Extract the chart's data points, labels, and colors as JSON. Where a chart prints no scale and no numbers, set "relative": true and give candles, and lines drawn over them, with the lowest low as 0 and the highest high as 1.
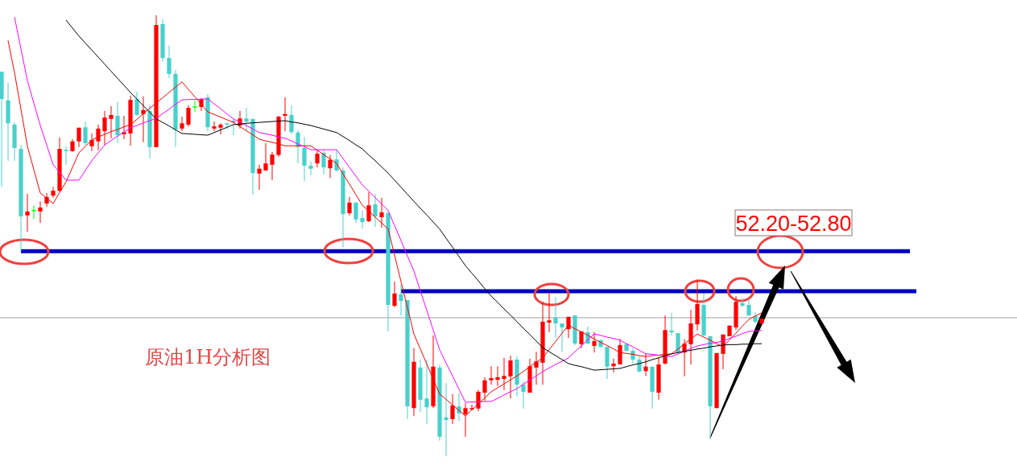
{
  "chart_data": {
    "type": "candlestick",
    "relative": true,
    "categories": [
      null,
      null,
      null,
      null,
      null,
      null,
      null,
      null,
      null,
      null,
      null,
      null,
      null,
      null,
      null,
      null,
      null,
      null,
      null,
      null,
      null,
      null,
      null,
      null,
      null,
      null,
      null,
      null,
      null,
      null,
      null,
      null,
      null,
      null,
      null,
      null,
      null,
      null,
      null,
      null,
      null,
      null,
      null,
      null,
      null,
      null,
      null,
      null,
      null,
      null,
      null,
      null,
      null,
      null,
      null,
      null,
      null,
      null,
      null,
      null,
      null,
      null,
      null,
      null,
      null,
      null,
      null,
      null,
      null,
      null,
      null,
      null,
      null,
      null,
      null,
      null,
      null,
      null,
      null,
      null,
      null,
      null,
      null,
      null,
      null,
      null,
      null,
      null,
      null,
      null,
      null,
      null,
      null,
      null,
      null,
      null,
      null,
      null,
      null,
      null,
      null,
      null,
      null,
      null,
      null,
      null,
      null,
      null,
      null,
      null,
      null,
      null,
      null,
      null,
      null,
      null,
      null,
      null,
      null
    ],
    "ohlc": [
      [
        0.872,
        0.872,
        0.611,
        0.81
      ],
      [
        0.807,
        0.847,
        0.67,
        0.755
      ],
      [
        0.752,
        0.757,
        0.67,
        0.699
      ],
      [
        0.697,
        0.706,
        0.464,
        0.544
      ],
      [
        0.546,
        0.595,
        0.509,
        0.555
      ],
      [
        0.557,
        0.569,
        0.538,
        0.557
      ],
      [
        0.555,
        0.578,
        0.529,
        0.564
      ],
      [
        0.573,
        0.597,
        0.566,
        0.588
      ],
      [
        0.591,
        0.611,
        0.586,
        0.602
      ],
      [
        0.602,
        0.723,
        0.599,
        0.697
      ],
      [
        0.695,
        0.703,
        0.661,
        0.692
      ],
      [
        0.692,
        0.719,
        0.69,
        0.714
      ],
      [
        0.714,
        0.745,
        0.701,
        0.745
      ],
      [
        0.746,
        0.759,
        0.706,
        0.71
      ],
      [
        0.703,
        0.732,
        0.692,
        0.717
      ],
      [
        0.714,
        0.752,
        0.694,
        0.743
      ],
      [
        0.737,
        0.783,
        0.706,
        0.768
      ],
      [
        0.765,
        0.794,
        0.721,
        0.774
      ],
      [
        0.772,
        0.803,
        0.71,
        0.728
      ],
      [
        0.73,
        0.772,
        0.719,
        0.735
      ],
      [
        0.732,
        0.818,
        0.704,
        0.808
      ],
      [
        0.81,
        0.827,
        0.772,
        0.774
      ],
      [
        0.776,
        0.816,
        0.712,
        0.785
      ],
      [
        0.783,
        0.797,
        0.675,
        0.701
      ],
      [
        0.701,
        1,
        0.701,
        0.978
      ],
      [
        0.98,
        0.991,
        0.894,
        0.903
      ],
      [
        0.903,
        0.931,
        0.858,
        0.867
      ],
      [
        0.867,
        0.876,
        0.701,
        0.741
      ],
      [
        0.743,
        0.77,
        0.737,
        0.755
      ],
      [
        0.752,
        0.796,
        0.748,
        0.79
      ],
      [
        0.792,
        0.807,
        0.781,
        0.792
      ],
      [
        0.792,
        0.812,
        0.783,
        0.81
      ],
      [
        0.814,
        0.821,
        0.737,
        0.746
      ],
      [
        0.743,
        0.759,
        0.737,
        0.748
      ],
      [
        0.745,
        0.755,
        0.73,
        0.752
      ],
      [
        0.755,
        0.755,
        0.741,
        0.752
      ],
      [
        0.761,
        0.765,
        0.728,
        0.757
      ],
      [
        0.75,
        0.783,
        0.743,
        0.766
      ],
      [
        0.766,
        0.79,
        0.739,
        0.759
      ],
      [
        0.765,
        0.765,
        0.593,
        0.642
      ],
      [
        0.641,
        0.661,
        0.604,
        0.652
      ],
      [
        0.648,
        0.71,
        0.648,
        0.664
      ],
      [
        0.661,
        0.69,
        0.626,
        0.684
      ],
      [
        0.683,
        0.772,
        0.679,
        0.77
      ],
      [
        0.772,
        0.814,
        0.737,
        0.776
      ],
      [
        0.774,
        0.796,
        0.73,
        0.735
      ],
      [
        0.734,
        0.739,
        0.664,
        0.701
      ],
      [
        0.699,
        0.724,
        0.624,
        0.659
      ],
      [
        0.659,
        0.668,
        0.637,
        0.652
      ],
      [
        0.664,
        0.694,
        0.655,
        0.686
      ],
      [
        0.688,
        0.694,
        0.639,
        0.655
      ],
      [
        0.653,
        0.683,
        0.631,
        0.672
      ],
      [
        0.673,
        0.695,
        0.646,
        0.648
      ],
      [
        0.648,
        0.655,
        0.474,
        0.549
      ],
      [
        0.551,
        0.588,
        0.546,
        0.575
      ],
      [
        0.575,
        0.577,
        0.529,
        0.537
      ],
      [
        0.54,
        0.557,
        0.516,
        0.531
      ],
      [
        0.533,
        0.599,
        0.531,
        0.569
      ],
      [
        0.571,
        0.595,
        0.52,
        0.544
      ],
      [
        0.542,
        0.586,
        0.518,
        0.553
      ],
      [
        0.551,
        0.553,
        0.283,
        0.343
      ],
      [
        0.341,
        0.396,
        0.338,
        0.369
      ],
      [
        0.367,
        0.389,
        0.319,
        0.352
      ],
      [
        0.354,
        0.354,
        0.084,
        0.113
      ],
      [
        0.109,
        0.245,
        0.091,
        0.214
      ],
      [
        0.201,
        0.219,
        0.1,
        0.128
      ],
      [
        0.131,
        0.219,
        0.073,
        0.111
      ],
      [
        0.113,
        0.274,
        0.109,
        0.203
      ],
      [
        0.201,
        0.208,
        0.035,
        0.044
      ],
      [
        0.088,
        0.166,
        0,
        0.082
      ],
      [
        0.084,
        0.141,
        0.073,
        0.115
      ],
      [
        0.113,
        0.144,
        0.08,
        0.097
      ],
      [
        0.095,
        0.12,
        0.044,
        0.109
      ],
      [
        0.106,
        0.117,
        0.104,
        0.109
      ],
      [
        0.108,
        0.15,
        0.102,
        0.146
      ],
      [
        0.144,
        0.179,
        0.126,
        0.172
      ],
      [
        0.172,
        0.204,
        0.162,
        0.177
      ],
      [
        0.173,
        0.204,
        0.159,
        0.179
      ],
      [
        0.175,
        0.223,
        0.15,
        0.182
      ],
      [
        0.181,
        0.228,
        0.131,
        0.217
      ],
      [
        0.219,
        0.226,
        0.135,
        0.162
      ],
      [
        0.162,
        0.17,
        0.108,
        0.146
      ],
      [
        0.144,
        0.221,
        0.144,
        0.204
      ],
      [
        0.201,
        0.237,
        0.162,
        0.215
      ],
      [
        0.212,
        0.35,
        0.162,
        0.305
      ],
      [
        0.303,
        0.372,
        0.281,
        0.308
      ],
      [
        0.314,
        0.361,
        0.268,
        0.301
      ],
      [
        0.301,
        0.301,
        0.237,
        0.292
      ],
      [
        0.288,
        0.316,
        0.268,
        0.316
      ],
      [
        0.319,
        0.319,
        0.252,
        0.255
      ],
      [
        0.254,
        0.283,
        0.245,
        0.283
      ],
      [
        0.281,
        0.294,
        0.254,
        0.255
      ],
      [
        0.25,
        0.281,
        0.235,
        0.261
      ],
      [
        0.263,
        0.265,
        0.246,
        0.248
      ],
      [
        0.248,
        0.248,
        0.175,
        0.203
      ],
      [
        0.204,
        0.221,
        0.19,
        0.21
      ],
      [
        0.208,
        0.266,
        0.208,
        0.252
      ],
      [
        0.254,
        0.257,
        0.237,
        0.239
      ],
      [
        0.239,
        0.245,
        0.21,
        0.219
      ],
      [
        0.219,
        0.226,
        0.19,
        0.192
      ],
      [
        0.193,
        0.234,
        0.182,
        0.203
      ],
      [
        0.203,
        0.203,
        0.108,
        0.146
      ],
      [
        0.144,
        0.223,
        0.128,
        0.208
      ],
      [
        0.21,
        0.319,
        0.208,
        0.286
      ],
      [
        0.285,
        0.325,
        0.274,
        0.281
      ],
      [
        0.279,
        0.279,
        0.235,
        0.235
      ],
      [
        0.235,
        0.265,
        0.181,
        0.255
      ],
      [
        0.254,
        0.332,
        0.208,
        0.301
      ],
      [
        0.299,
        0.401,
        0.285,
        0.345
      ],
      [
        0.343,
        0.369,
        0.272,
        0.274
      ],
      [
        0.272,
        0.272,
        0.038,
        0.113
      ],
      [
        0.109,
        0.234,
        0.109,
        0.234
      ],
      [
        0.232,
        0.276,
        0.197,
        0.276
      ],
      [
        0.272,
        0.297,
        0.272,
        0.296
      ],
      [
        0.292,
        0.363,
        0.286,
        0.35
      ],
      [
        0.347,
        0.358,
        0.339,
        0.341
      ],
      [
        0.343,
        0.356,
        0.319,
        0.319
      ],
      [
        0.318,
        0.327,
        0.301,
        0.305
      ],
      [
        0.301,
        0.312,
        0.297,
        0.312
      ]
    ],
    "colors": [
      "#48d1cc",
      "#48d1cc",
      "#48d1cc",
      "#48d1cc",
      "#ff0000",
      "#00ff00",
      "#ff0000",
      "#ff0000",
      "#ff0000",
      "#ff0000",
      "#48d1cc",
      "#ff0000",
      "#ff0000",
      "#48d1cc",
      "#ff0000",
      "#ff0000",
      "#ff0000",
      "#ff0000",
      "#48d1cc",
      "#ff0000",
      "#ff0000",
      "#48d1cc",
      "#ff0000",
      "#48d1cc",
      "#ff0000",
      "#48d1cc",
      "#48d1cc",
      "#48d1cc",
      "#ff0000",
      "#ff0000",
      "#00ff00",
      "#ff0000",
      "#48d1cc",
      "#ff0000",
      "#ff0000",
      "#48d1cc",
      "#48d1cc",
      "#ff0000",
      "#48d1cc",
      "#48d1cc",
      "#ff0000",
      "#ff0000",
      "#ff0000",
      "#ff0000",
      "#ff0000",
      "#48d1cc",
      "#48d1cc",
      "#48d1cc",
      "#48d1cc",
      "#ff0000",
      "#48d1cc",
      "#ff0000",
      "#48d1cc",
      "#48d1cc",
      "#ff0000",
      "#48d1cc",
      "#48d1cc",
      "#ff0000",
      "#48d1cc",
      "#ff0000",
      "#48d1cc",
      "#ff0000",
      "#48d1cc",
      "#48d1cc",
      "#ff0000",
      "#48d1cc",
      "#48d1cc",
      "#ff0000",
      "#48d1cc",
      "#48d1cc",
      "#ff0000",
      "#48d1cc",
      "#ff0000",
      "#ff0000",
      "#ff0000",
      "#ff0000",
      "#ff0000",
      "#ff0000",
      "#ff0000",
      "#ff0000",
      "#48d1cc",
      "#48d1cc",
      "#ff0000",
      "#ff0000",
      "#ff0000",
      "#ff0000",
      "#48d1cc",
      "#48d1cc",
      "#ff0000",
      "#48d1cc",
      "#ff0000",
      "#48d1cc",
      "#ff0000",
      "#48d1cc",
      "#48d1cc",
      "#ff0000",
      "#ff0000",
      "#48d1cc",
      "#48d1cc",
      "#48d1cc",
      "#ff0000",
      "#48d1cc",
      "#ff0000",
      "#ff0000",
      "#48d1cc",
      "#48d1cc",
      "#ff0000",
      "#ff0000",
      "#ff0000",
      "#48d1cc",
      "#48d1cc",
      "#ff0000",
      "#ff0000",
      "#ff0000",
      "#ff0000",
      "#48d1cc",
      "#48d1cc",
      "#48d1cc",
      "#ff0000"
    ],
    "series": [
      {
        "type": "line",
        "color": "#ff0000",
        "values": [
          null,
          0.943,
          0.87,
          0.787,
          0.703,
          0.65,
          0.597,
          0.585,
          0.573,
          0.598,
          0.622,
          0.655,
          0.688,
          0.703,
          0.717,
          0.724,
          0.73,
          0.736,
          0.741,
          0.747,
          0.752,
          0.764,
          0.777,
          0.789,
          0.801,
          0.813,
          0.825,
          0.837,
          0.849,
          0.832,
          0.815,
          0.798,
          0.781,
          0.775,
          0.769,
          0.763,
          0.757,
          0.748,
          0.738,
          0.729,
          0.719,
          0.715,
          0.712,
          0.708,
          0.704,
          0.704,
          0.704,
          0.704,
          0.704,
          0.694,
          0.684,
          0.674,
          0.664,
          0.64,
          0.617,
          0.593,
          0.569,
          0.556,
          0.542,
          0.529,
          0.515,
          0.456,
          0.396,
          0.337,
          0.277,
          0.243,
          0.209,
          0.175,
          0.141,
          0.129,
          0.116,
          0.104,
          0.091,
          0.105,
          0.119,
          0.132,
          0.146,
          0.155,
          0.164,
          0.173,
          0.182,
          0.192,
          0.203,
          0.213,
          0.223,
          0.242,
          0.26,
          0.279,
          0.297,
          0.289,
          0.282,
          0.274,
          0.266,
          0.258,
          0.251,
          0.243,
          0.235,
          0.233,
          0.231,
          0.228,
          0.226,
          0.228,
          0.229,
          0.231,
          0.232,
          0.243,
          0.255,
          0.266,
          0.277,
          0.27,
          0.263,
          0.255,
          0.248,
          0.264,
          0.279,
          0.295,
          0.31,
          0.318,
          0.325
        ]
      },
      {
        "type": "line",
        "color": "#ff00ff",
        "values": [
          null,
          null,
          0.996,
          0.924,
          0.852,
          0.801,
          0.75,
          0.706,
          0.661,
          0.644,
          0.626,
          0.626,
          0.626,
          0.648,
          0.67,
          0.688,
          0.706,
          0.716,
          0.726,
          0.735,
          0.745,
          0.75,
          0.756,
          0.761,
          0.766,
          0.777,
          0.787,
          0.798,
          0.808,
          0.809,
          0.809,
          0.81,
          0.81,
          0.799,
          0.788,
          0.776,
          0.765,
          0.757,
          0.75,
          0.742,
          0.734,
          0.731,
          0.728,
          0.724,
          0.721,
          0.715,
          0.708,
          0.702,
          0.695,
          0.695,
          0.695,
          0.695,
          0.695,
          0.675,
          0.655,
          0.635,
          0.615,
          0.601,
          0.586,
          0.572,
          0.557,
          0.523,
          0.489,
          0.454,
          0.42,
          0.375,
          0.331,
          0.286,
          0.241,
          0.211,
          0.182,
          0.152,
          0.122,
          0.123,
          0.123,
          0.124,
          0.124,
          0.131,
          0.139,
          0.146,
          0.153,
          0.163,
          0.173,
          0.182,
          0.192,
          0.2,
          0.208,
          0.215,
          0.223,
          0.237,
          0.25,
          0.264,
          0.277,
          0.274,
          0.27,
          0.267,
          0.263,
          0.255,
          0.248,
          0.24,
          0.232,
          0.231,
          0.229,
          0.228,
          0.226,
          0.232,
          0.238,
          0.244,
          0.25,
          0.253,
          0.256,
          0.258,
          0.261,
          0.267,
          0.272,
          0.278,
          0.283,
          0.284,
          0.285
        ]
      },
      {
        "type": "line",
        "color": "#000000",
        "values": [
          null,
          null,
          null,
          null,
          null,
          null,
          null,
          null,
          null,
          null,
          0.989,
          0.971,
          0.953,
          0.937,
          0.921,
          0.905,
          0.889,
          0.873,
          0.857,
          0.841,
          0.825,
          0.81,
          0.795,
          0.78,
          0.765,
          0.757,
          0.749,
          0.74,
          0.732,
          0.731,
          0.73,
          0.729,
          0.728,
          0.734,
          0.74,
          0.746,
          0.752,
          0.753,
          0.755,
          0.756,
          0.757,
          0.758,
          0.759,
          0.76,
          0.761,
          0.758,
          0.756,
          0.753,
          0.75,
          0.746,
          0.742,
          0.738,
          0.734,
          0.725,
          0.716,
          0.706,
          0.697,
          0.683,
          0.67,
          0.656,
          0.642,
          0.626,
          0.61,
          0.594,
          0.578,
          0.562,
          0.547,
          0.531,
          0.515,
          0.494,
          0.474,
          0.453,
          0.432,
          0.415,
          0.398,
          0.38,
          0.363,
          0.349,
          0.334,
          0.32,
          0.305,
          0.29,
          0.276,
          0.261,
          0.246,
          0.237,
          0.228,
          0.219,
          0.21,
          0.206,
          0.203,
          0.199,
          0.195,
          0.196,
          0.197,
          0.198,
          0.199,
          0.203,
          0.207,
          0.21,
          0.214,
          0.219,
          0.223,
          0.228,
          0.232,
          0.235,
          0.238,
          0.24,
          0.243,
          0.245,
          0.248,
          0.25,
          0.252,
          0.253,
          0.253,
          0.254,
          0.254,
          0.255,
          0.255
        ]
      }
    ],
    "ref_lines": [
      {
        "axis": "y",
        "value": 0.465,
        "color": "#0000c0"
      },
      {
        "axis": "y",
        "value": 0.374,
        "color": "#0000c0"
      },
      {
        "axis": "y",
        "value": 0.314,
        "color": "#a0a0a0"
      }
    ],
    "annotations": [
      "原油1H分析图",
      "52.20-52.80"
    ]
  }
}
